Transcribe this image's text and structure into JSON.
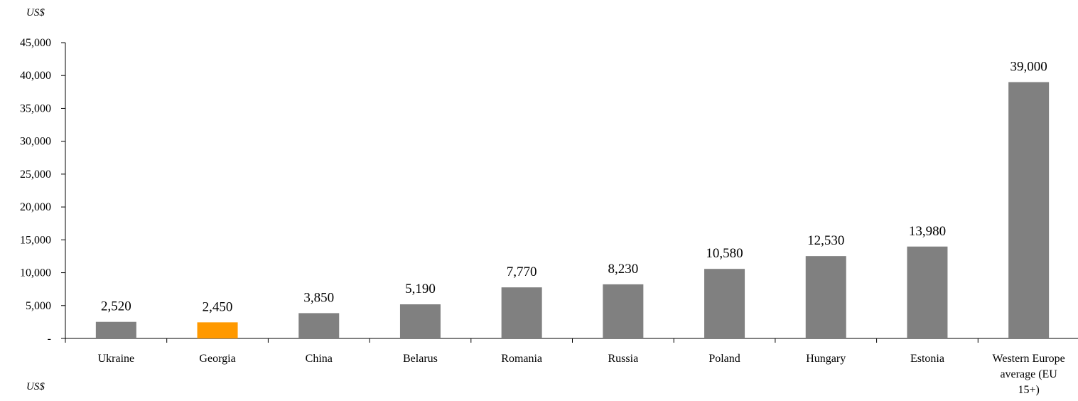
{
  "unit_top": "US$",
  "unit_bottom": "US$",
  "chart_data": {
    "type": "bar",
    "categories": [
      "Ukraine",
      "Georgia",
      "China",
      "Belarus",
      "Romania",
      "Russia",
      "Poland",
      "Hungary",
      "Estonia",
      "Western Europe average (EU 15+)"
    ],
    "category_lines": [
      [
        "Ukraine"
      ],
      [
        "Georgia"
      ],
      [
        "China"
      ],
      [
        "Belarus"
      ],
      [
        "Romania"
      ],
      [
        "Russia"
      ],
      [
        "Poland"
      ],
      [
        "Hungary"
      ],
      [
        "Estonia"
      ],
      [
        "Western Europe",
        "average (EU",
        "15+)"
      ]
    ],
    "values": [
      2520,
      2450,
      3850,
      5190,
      7770,
      8230,
      10580,
      12530,
      13980,
      39000
    ],
    "value_labels": [
      "2,520",
      "2,450",
      "3,850",
      "5,190",
      "7,770",
      "8,230",
      "10,580",
      "12,530",
      "13,980",
      "39,000"
    ],
    "ylim": [
      0,
      45000
    ],
    "yticks": [
      0,
      5000,
      10000,
      15000,
      20000,
      25000,
      30000,
      35000,
      40000,
      45000
    ],
    "ytick_labels": [
      "-",
      "5,000",
      "10,000",
      "15,000",
      "20,000",
      "25,000",
      "30,000",
      "35,000",
      "40,000",
      "45,000"
    ],
    "grid": false,
    "colors": {
      "default": "#808080",
      "highlight": "#FF9900"
    },
    "highlight_category": "Georgia"
  }
}
